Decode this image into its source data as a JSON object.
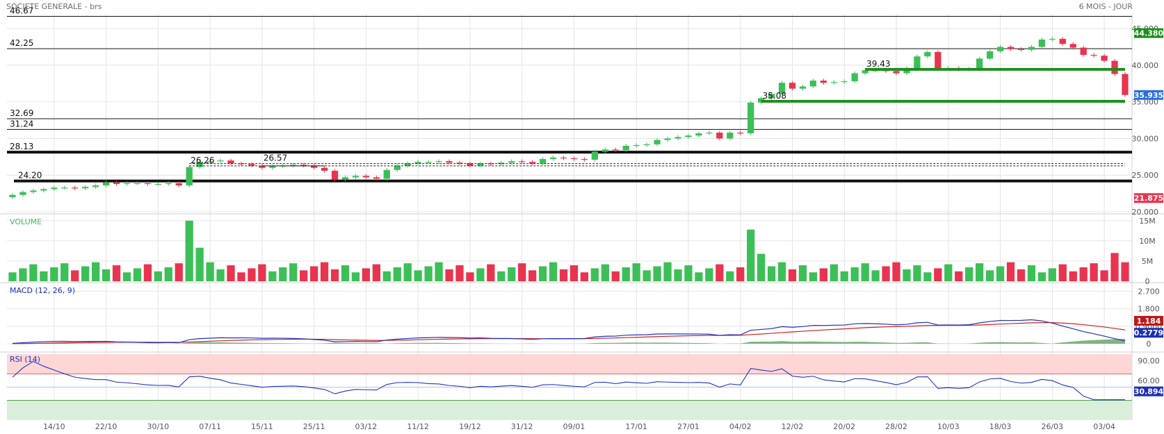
{
  "header": {
    "title": "SOCIETE GENERALE - brs",
    "period": "6 MOIS - JOUR"
  },
  "colors": {
    "up": "#3dbf57",
    "down": "#e8344f",
    "grid": "#e4e4e4",
    "support": "#1a8f1a",
    "macd_line": "#2030c0",
    "signal_line": "#d02020",
    "rsi_over": "#ffd6d6",
    "rsi_under": "#d9efd9"
  },
  "chart_data": [
    {
      "type": "candlestick",
      "name": "price",
      "x_ticks": [
        "14/10",
        "22/10",
        "30/10",
        "07/11",
        "15/11",
        "25/11",
        "03/12",
        "11/12",
        "19/12",
        "31/12",
        "09/01",
        "17/01",
        "27/01",
        "04/02",
        "12/02",
        "20/02",
        "28/02",
        "10/03",
        "18/03",
        "26/03",
        "03/04"
      ],
      "y_ticks": [
        "45.000",
        "40.000",
        "35.000",
        "30.000",
        "25.000",
        "20.000"
      ],
      "ylim": [
        20,
        47
      ],
      "closes": [
        22.3,
        22.7,
        22.9,
        23.1,
        23.3,
        23.3,
        23.2,
        23.4,
        23.6,
        24.0,
        23.8,
        23.9,
        23.9,
        23.8,
        23.8,
        23.9,
        23.6,
        26.1,
        26.8,
        26.9,
        27.0,
        26.6,
        26.5,
        26.3,
        26.0,
        26.2,
        26.3,
        26.4,
        26.3,
        26.0,
        25.6,
        24.4,
        24.7,
        24.9,
        24.7,
        24.5,
        25.7,
        26.3,
        26.6,
        26.8,
        26.8,
        26.9,
        26.7,
        26.6,
        26.3,
        26.6,
        26.5,
        26.7,
        26.9,
        26.8,
        26.6,
        27.2,
        27.4,
        27.3,
        27.2,
        27.1,
        28.2,
        28.5,
        28.4,
        29.0,
        29.1,
        29.2,
        29.8,
        30.0,
        30.2,
        30.4,
        30.7,
        30.8,
        30.0,
        30.8,
        30.7,
        34.9,
        35.5,
        36.1,
        37.6,
        36.8,
        37.1,
        37.9,
        37.6,
        37.7,
        37.8,
        38.9,
        39.3,
        39.3,
        39.2,
        38.9,
        39.6,
        41.2,
        41.8,
        39.5,
        39.6,
        39.4,
        39.5,
        40.9,
        41.9,
        42.5,
        42.2,
        42.1,
        42.5,
        43.5,
        43.6,
        42.9,
        42.4,
        41.4,
        41.3,
        40.6,
        38.8,
        35.94
      ],
      "badges": [
        {
          "value": "44.380",
          "color": "#1a8f1a",
          "y": 44.38
        },
        {
          "value": "35.935",
          "color": "#2a6fe0",
          "y": 35.935
        },
        {
          "value": "21.875",
          "color": "#e8344f",
          "y": 21.875
        }
      ],
      "annotations": [
        "26.26",
        "26.57",
        "39.43",
        "35.08"
      ],
      "hlines": [
        {
          "label": "46.67",
          "y": 46.67
        },
        {
          "label": "42.25",
          "y": 42.25
        },
        {
          "label": "32.69",
          "y": 32.69
        },
        {
          "label": "31.24",
          "y": 31.24
        },
        {
          "label": "28.13",
          "y": 28.13
        },
        {
          "label": "24.20",
          "y": 24.2
        }
      ]
    },
    {
      "type": "bar",
      "name": "volume",
      "title": "VOLUME",
      "y_ticks": [
        "15M",
        "10M",
        "5M",
        "0"
      ],
      "ylim": [
        0,
        16
      ]
    },
    {
      "type": "line",
      "name": "macd",
      "title": "MACD (12, 26, 9)",
      "y_ticks": [
        "2.700",
        "1.800",
        "0.9000",
        "0"
      ],
      "ylim": [
        0,
        2.9
      ],
      "badges": [
        {
          "value": "1.184",
          "color": "#c01818"
        },
        {
          "value": "0.2779",
          "color": "#1d2fb5"
        }
      ]
    },
    {
      "type": "line",
      "name": "rsi",
      "title": "RSI (14)",
      "y_ticks": [
        "90.00",
        "60.00"
      ],
      "ylim": [
        0,
        100
      ],
      "badges": [
        {
          "value": "30.894",
          "color": "#1d2fb5"
        }
      ]
    }
  ]
}
